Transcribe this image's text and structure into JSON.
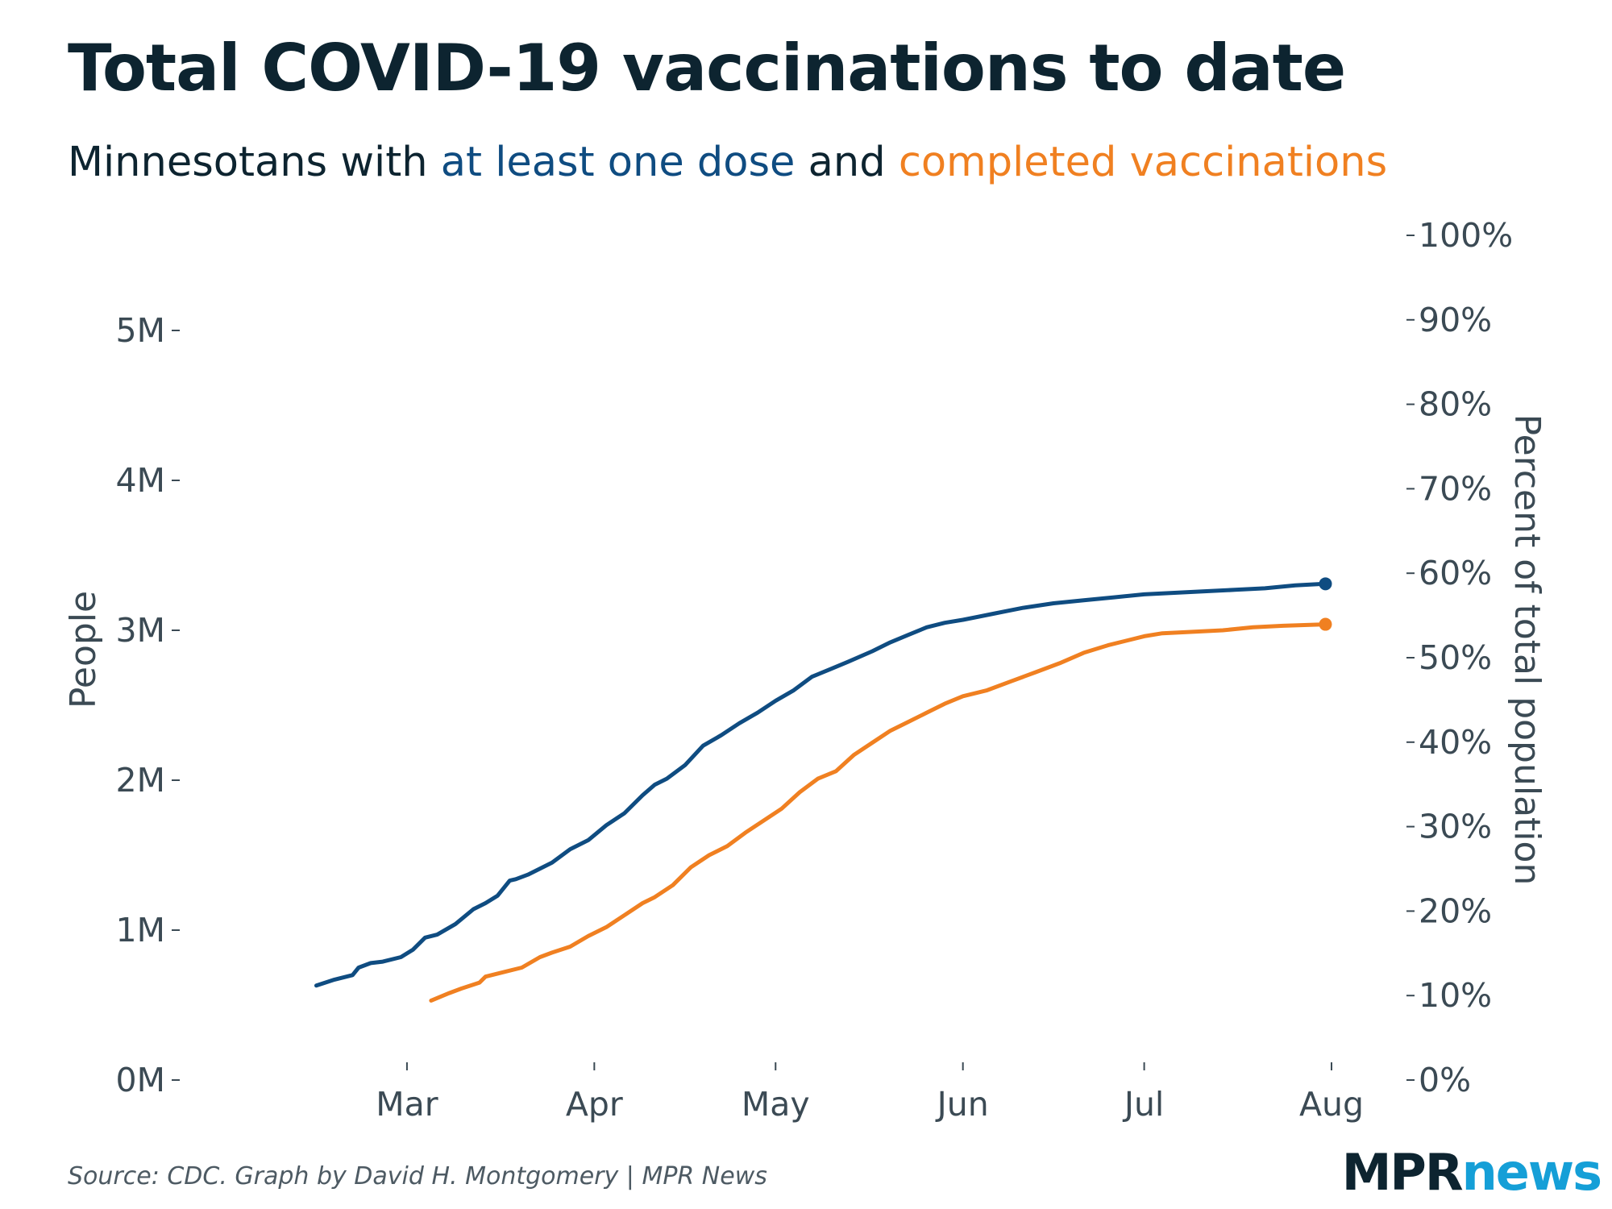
{
  "header": {
    "title": "Total COVID-19 vaccinations to date",
    "subtitle_prefix": "Minnesotans with ",
    "subtitle_series1": "at least one dose",
    "subtitle_mid": " and ",
    "subtitle_series2": "completed vaccinations"
  },
  "footer": {
    "source": "Source: CDC. Graph by David H. Montgomery | MPR News",
    "logo_mpr": "MPR",
    "logo_news": "news"
  },
  "colors": {
    "series1": "#0f4c81",
    "series2": "#f08021",
    "text": "#0d2430",
    "axis": "#3b4a54"
  },
  "chart_data": {
    "type": "line",
    "title": "Total COVID-19 vaccinations to date",
    "ylabel": "People",
    "y2label": "Percent of total population",
    "ylim": [
      0,
      5000000
    ],
    "y2lim": [
      0,
      100
    ],
    "yticks": [
      0,
      1000000,
      2000000,
      3000000,
      4000000,
      5000000
    ],
    "ytick_labels": [
      "0M",
      "1M",
      "2M",
      "3M",
      "4M",
      "5M"
    ],
    "y2ticks": [
      0,
      10,
      20,
      30,
      40,
      50,
      60,
      70,
      80,
      90,
      100
    ],
    "y2tick_labels": [
      "0%",
      "10%",
      "20%",
      "30%",
      "40%",
      "50%",
      "60%",
      "70%",
      "80%",
      "90%",
      "100%"
    ],
    "x_unit": "days since Feb 1, 2021",
    "xlim": [
      0,
      185
    ],
    "xticks": [
      28,
      59,
      89,
      120,
      150,
      181
    ],
    "xtick_labels": [
      "Mar",
      "Apr",
      "May",
      "Jun",
      "Jul",
      "Aug"
    ],
    "series": [
      {
        "name": "at least one dose",
        "color": "#0f4c81",
        "end_marker": true,
        "points": [
          [
            13,
            630000
          ],
          [
            16,
            670000
          ],
          [
            19,
            700000
          ],
          [
            20,
            750000
          ],
          [
            22,
            780000
          ],
          [
            24,
            790000
          ],
          [
            27,
            820000
          ],
          [
            29,
            870000
          ],
          [
            31,
            950000
          ],
          [
            33,
            970000
          ],
          [
            36,
            1040000
          ],
          [
            39,
            1140000
          ],
          [
            41,
            1180000
          ],
          [
            43,
            1230000
          ],
          [
            45,
            1330000
          ],
          [
            46,
            1340000
          ],
          [
            48,
            1370000
          ],
          [
            52,
            1450000
          ],
          [
            55,
            1540000
          ],
          [
            58,
            1600000
          ],
          [
            61,
            1700000
          ],
          [
            64,
            1780000
          ],
          [
            67,
            1900000
          ],
          [
            69,
            1970000
          ],
          [
            71,
            2010000
          ],
          [
            74,
            2100000
          ],
          [
            77,
            2230000
          ],
          [
            80,
            2300000
          ],
          [
            83,
            2380000
          ],
          [
            86,
            2450000
          ],
          [
            89,
            2530000
          ],
          [
            92,
            2600000
          ],
          [
            95,
            2690000
          ],
          [
            98,
            2740000
          ],
          [
            101,
            2790000
          ],
          [
            105,
            2860000
          ],
          [
            108,
            2920000
          ],
          [
            111,
            2970000
          ],
          [
            114,
            3020000
          ],
          [
            117,
            3050000
          ],
          [
            120,
            3070000
          ],
          [
            125,
            3110000
          ],
          [
            130,
            3150000
          ],
          [
            135,
            3180000
          ],
          [
            140,
            3200000
          ],
          [
            145,
            3220000
          ],
          [
            150,
            3240000
          ],
          [
            155,
            3250000
          ],
          [
            160,
            3260000
          ],
          [
            165,
            3270000
          ],
          [
            170,
            3280000
          ],
          [
            175,
            3300000
          ],
          [
            180,
            3310000
          ]
        ]
      },
      {
        "name": "completed vaccinations",
        "color": "#f08021",
        "end_marker": true,
        "points": [
          [
            32,
            530000
          ],
          [
            35,
            580000
          ],
          [
            37,
            610000
          ],
          [
            40,
            650000
          ],
          [
            41,
            690000
          ],
          [
            43,
            710000
          ],
          [
            47,
            750000
          ],
          [
            50,
            820000
          ],
          [
            52,
            850000
          ],
          [
            55,
            890000
          ],
          [
            58,
            960000
          ],
          [
            61,
            1020000
          ],
          [
            64,
            1100000
          ],
          [
            67,
            1180000
          ],
          [
            69,
            1220000
          ],
          [
            72,
            1300000
          ],
          [
            75,
            1420000
          ],
          [
            78,
            1500000
          ],
          [
            81,
            1560000
          ],
          [
            84,
            1650000
          ],
          [
            87,
            1730000
          ],
          [
            90,
            1810000
          ],
          [
            93,
            1920000
          ],
          [
            96,
            2010000
          ],
          [
            99,
            2060000
          ],
          [
            102,
            2170000
          ],
          [
            105,
            2250000
          ],
          [
            108,
            2330000
          ],
          [
            111,
            2390000
          ],
          [
            114,
            2450000
          ],
          [
            117,
            2510000
          ],
          [
            120,
            2560000
          ],
          [
            124,
            2600000
          ],
          [
            128,
            2660000
          ],
          [
            132,
            2720000
          ],
          [
            136,
            2780000
          ],
          [
            140,
            2850000
          ],
          [
            144,
            2900000
          ],
          [
            147,
            2930000
          ],
          [
            150,
            2960000
          ],
          [
            153,
            2980000
          ],
          [
            158,
            2990000
          ],
          [
            163,
            3000000
          ],
          [
            168,
            3020000
          ],
          [
            173,
            3030000
          ],
          [
            180,
            3040000
          ]
        ]
      }
    ]
  }
}
